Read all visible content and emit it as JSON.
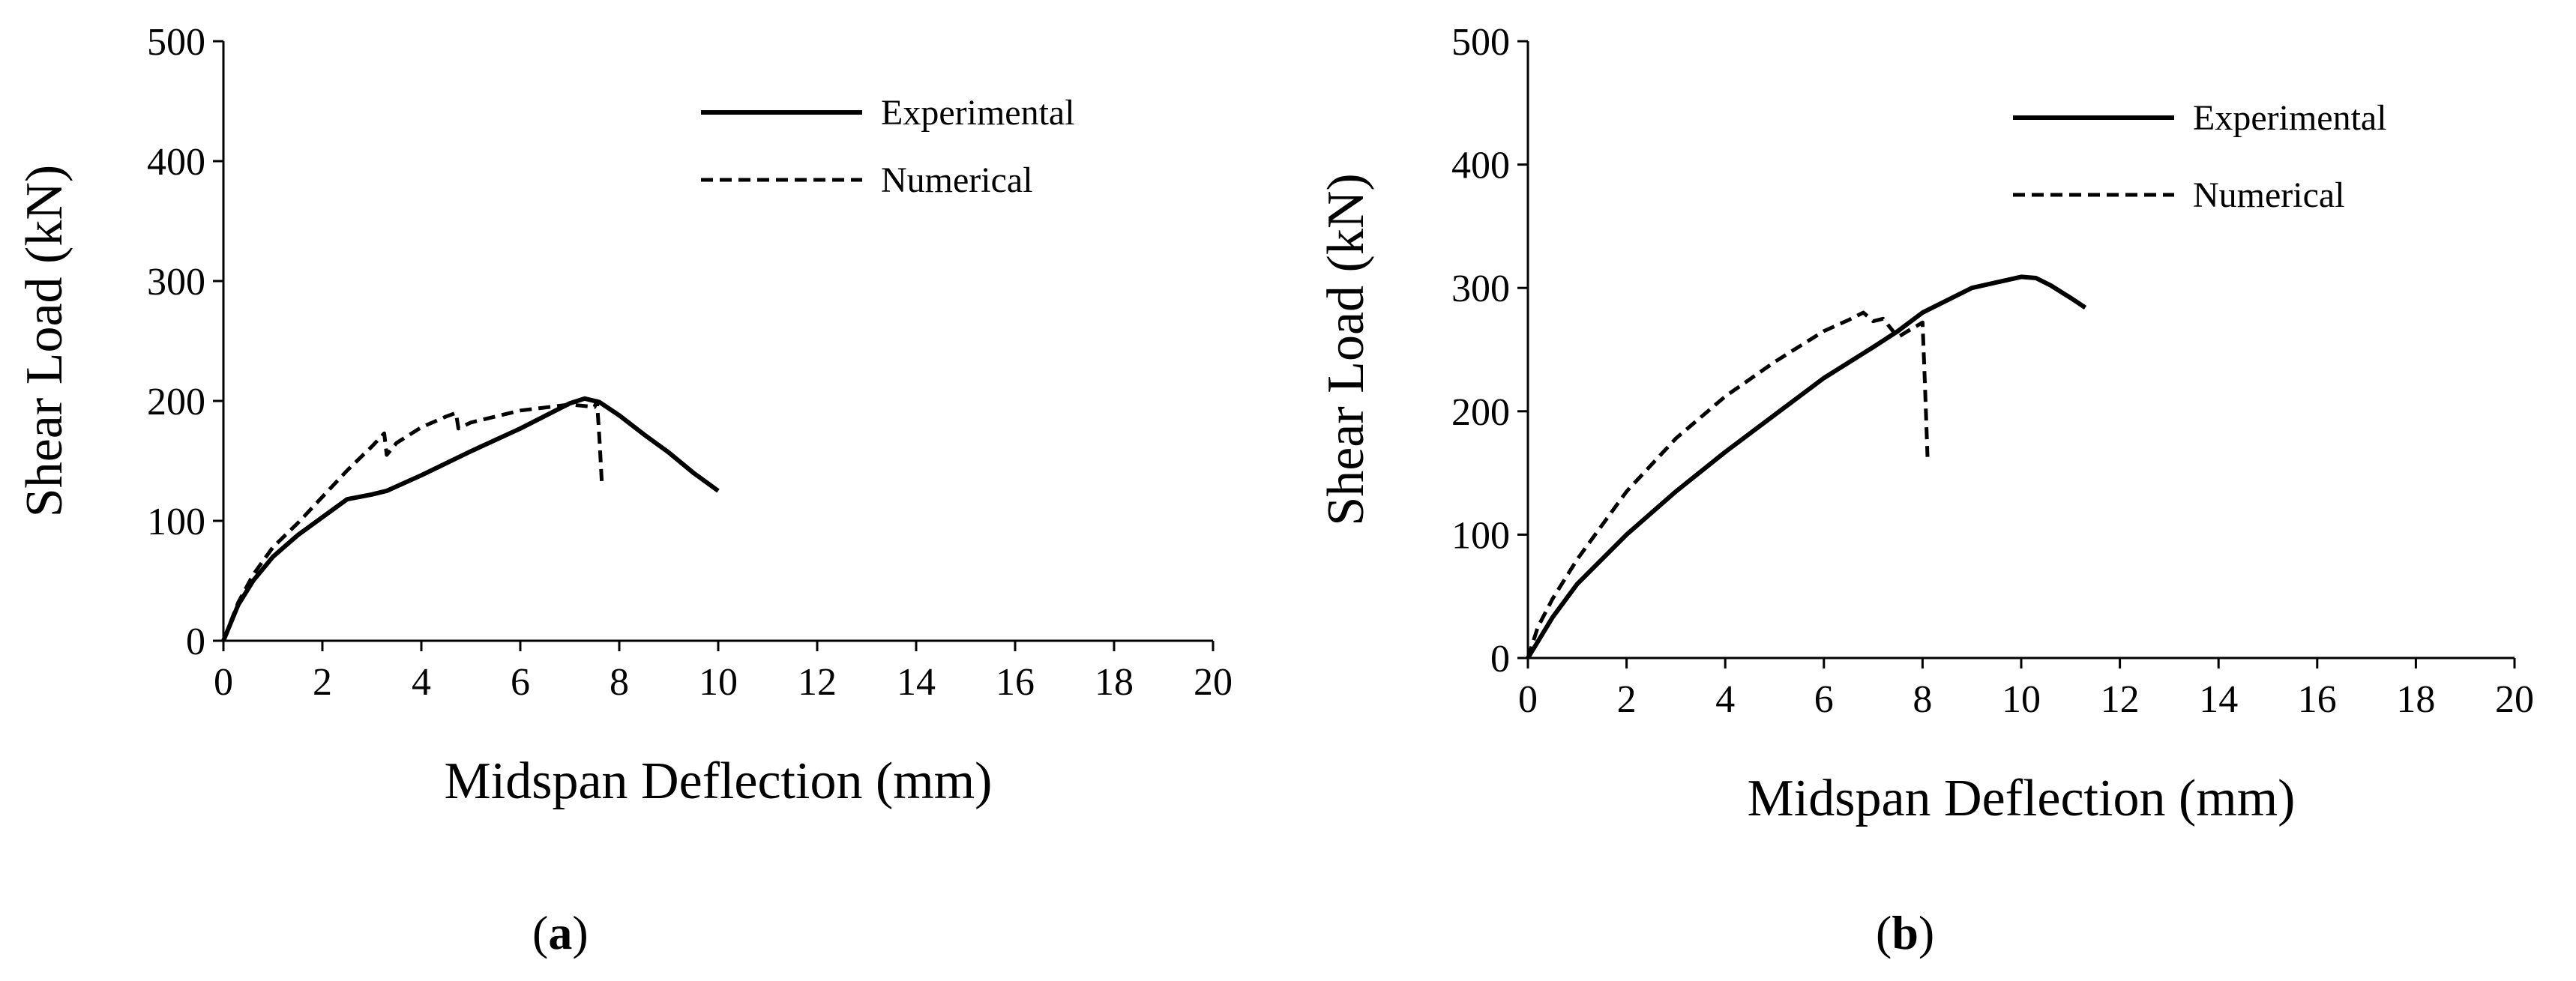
{
  "colors": {
    "line": "#000000",
    "background": "#ffffff"
  },
  "chart_data": [
    {
      "type": "line",
      "panel": "a",
      "caption_open": "(",
      "caption_label": "a",
      "caption_close": ")",
      "xlabel": "Midspan Deflection (mm)",
      "ylabel": "Shear Load (kN)",
      "xlim": [
        0,
        20
      ],
      "ylim": [
        0,
        500
      ],
      "xticks": [
        0,
        2,
        4,
        6,
        8,
        10,
        12,
        14,
        16,
        18,
        20
      ],
      "yticks": [
        0,
        100,
        200,
        300,
        400,
        500
      ],
      "grid": false,
      "legend_position": "top-right",
      "series": [
        {
          "name": "Experimental",
          "style": "solid",
          "x": [
            0,
            0.3,
            0.6,
            1.0,
            1.5,
            2.0,
            2.5,
            3.0,
            3.3,
            4.0,
            5.0,
            6.0,
            7.0,
            7.3,
            7.6,
            8.0,
            8.5,
            9.0,
            9.5,
            10.0
          ],
          "y": [
            0,
            30,
            50,
            70,
            88,
            103,
            118,
            122,
            125,
            138,
            158,
            177,
            198,
            202,
            199,
            188,
            172,
            157,
            140,
            125
          ]
        },
        {
          "name": "Numerical",
          "style": "dashed",
          "x": [
            0,
            0.3,
            0.6,
            1.0,
            1.5,
            2.0,
            2.5,
            3.0,
            3.25,
            3.3,
            3.5,
            4.0,
            4.5,
            4.7,
            4.75,
            5.0,
            6.0,
            7.0,
            7.5,
            7.55,
            7.6,
            7.65
          ],
          "y": [
            0,
            32,
            55,
            78,
            98,
            120,
            142,
            162,
            173,
            155,
            165,
            178,
            187,
            190,
            177,
            182,
            192,
            197,
            195,
            200,
            168,
            130
          ]
        }
      ]
    },
    {
      "type": "line",
      "panel": "b",
      "caption_open": "(",
      "caption_label": "b",
      "caption_close": ")",
      "xlabel": "Midspan Deflection (mm)",
      "ylabel": "Shear Load (kN)",
      "xlim": [
        0,
        20
      ],
      "ylim": [
        0,
        500
      ],
      "xticks": [
        0,
        2,
        4,
        6,
        8,
        10,
        12,
        14,
        16,
        18,
        20
      ],
      "yticks": [
        0,
        100,
        200,
        300,
        400,
        500
      ],
      "grid": false,
      "legend_position": "top-right",
      "series": [
        {
          "name": "Experimental",
          "style": "solid",
          "x": [
            0,
            0.5,
            1.0,
            2.0,
            3.0,
            4.0,
            5.0,
            6.0,
            7.0,
            7.5,
            8.0,
            9.0,
            10.0,
            10.3,
            10.6,
            11.0,
            11.3
          ],
          "y": [
            0,
            33,
            60,
            100,
            135,
            167,
            197,
            227,
            252,
            265,
            280,
            300,
            309,
            308,
            302,
            292,
            284
          ],
          "note": "continuous curve"
        },
        {
          "name": "Numerical",
          "style": "dashed",
          "x": [
            0,
            0.2,
            0.5,
            1.0,
            2.0,
            3.0,
            4.0,
            5.0,
            6.0,
            6.5,
            6.8,
            7.0,
            7.2,
            7.5,
            7.7,
            8.0,
            8.05,
            8.1
          ],
          "y": [
            0,
            25,
            48,
            80,
            135,
            178,
            212,
            240,
            265,
            274,
            280,
            273,
            275,
            260,
            265,
            272,
            220,
            163
          ]
        }
      ]
    }
  ]
}
